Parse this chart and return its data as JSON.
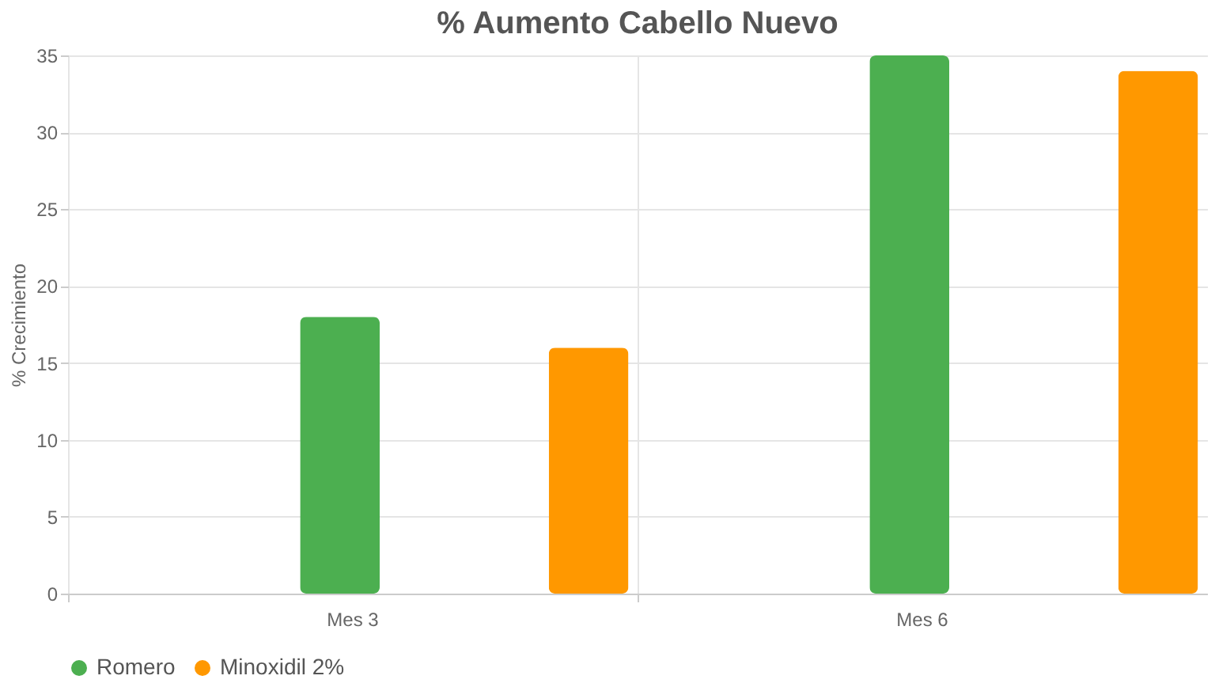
{
  "chart_data": {
    "type": "bar",
    "title": "% Aumento Cabello Nuevo",
    "ylabel": "% Crecimiento",
    "categories": [
      "Mes 3",
      "Mes 6"
    ],
    "series": [
      {
        "name": "Romero",
        "color": "#4caf50",
        "values": [
          18,
          35
        ]
      },
      {
        "name": "Minoxidil 2%",
        "color": "#ff9800",
        "values": [
          16,
          34
        ]
      }
    ],
    "ylim": [
      0,
      35
    ],
    "yticks": [
      0,
      5,
      10,
      15,
      20,
      25,
      30,
      35
    ],
    "grid": true,
    "legend": "bottom"
  }
}
